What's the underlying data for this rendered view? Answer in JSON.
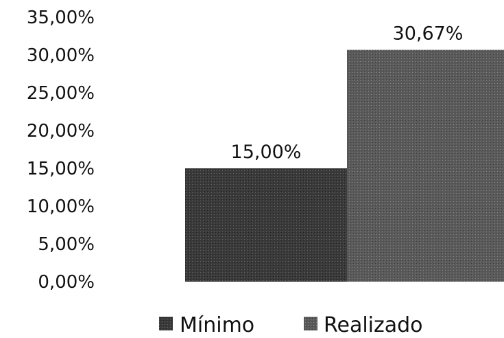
{
  "chart_data": {
    "type": "bar",
    "categories": [
      "Mínimo",
      "Realizado"
    ],
    "series": [
      {
        "name": "Mínimo",
        "values": [
          15.0,
          null
        ],
        "color": "#3a3a3a"
      },
      {
        "name": "Realizado",
        "values": [
          null,
          30.67
        ],
        "color": "#5a5a5a"
      }
    ],
    "values": [
      15.0,
      30.67
    ],
    "data_labels": [
      "15,00%",
      "30,67%"
    ],
    "y_ticks": [
      "0,00%",
      "5,00%",
      "10,00%",
      "15,00%",
      "20,00%",
      "25,00%",
      "30,00%",
      "35,00%"
    ],
    "ylim": [
      0,
      35
    ],
    "grid": false,
    "legend_position": "bottom",
    "legend": [
      "Mínimo",
      "Realizado"
    ],
    "title": "",
    "xlabel": "",
    "ylabel": ""
  }
}
